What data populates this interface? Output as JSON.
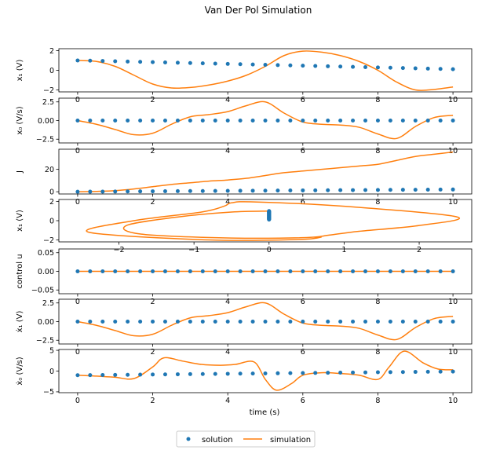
{
  "figure": {
    "title": "Van Der Pol Simulation",
    "xlabel": "time (s)"
  },
  "legend": {
    "placement": "bottom-center",
    "entries": [
      {
        "label": "solution",
        "marker": "circle",
        "color": "#1f77b4"
      },
      {
        "label": "simulation",
        "marker": "line",
        "color": "#ff7f0e"
      }
    ]
  },
  "colors": {
    "solution": "#1f77b4",
    "simulation": "#ff7f0e"
  },
  "chart_data": [
    {
      "type": "scatter+line",
      "ylabel": "x₁ (V)",
      "xlim": [
        -0.5,
        10.5
      ],
      "ylim": [
        -2.2,
        2.2
      ],
      "xticks": [
        0,
        2,
        4,
        6,
        8,
        10
      ],
      "yticks": [
        -2,
        0,
        2
      ],
      "solution": {
        "x": [
          0,
          0.333,
          0.667,
          1,
          1.333,
          1.667,
          2,
          2.333,
          2.667,
          3,
          3.333,
          3.667,
          4,
          4.333,
          4.667,
          5,
          5.333,
          5.667,
          6,
          6.333,
          6.667,
          7,
          7.333,
          7.667,
          8,
          8.333,
          8.667,
          9,
          9.333,
          9.667,
          10
        ],
        "y": [
          1.0,
          0.98,
          0.95,
          0.92,
          0.89,
          0.86,
          0.83,
          0.8,
          0.77,
          0.74,
          0.71,
          0.68,
          0.65,
          0.62,
          0.59,
          0.56,
          0.53,
          0.5,
          0.47,
          0.44,
          0.41,
          0.38,
          0.35,
          0.32,
          0.29,
          0.26,
          0.23,
          0.2,
          0.17,
          0.14,
          0.11
        ]
      },
      "simulation": {
        "x": [
          0,
          0.5,
          1,
          1.5,
          2,
          2.5,
          3,
          3.5,
          4,
          4.5,
          5,
          5.5,
          6,
          6.5,
          7,
          7.5,
          8,
          8.5,
          9,
          9.5,
          10
        ],
        "y": [
          1.0,
          0.9,
          0.4,
          -0.5,
          -1.4,
          -1.8,
          -1.75,
          -1.5,
          -1.1,
          -0.5,
          0.4,
          1.5,
          1.95,
          1.85,
          1.5,
          0.9,
          0.0,
          -1.2,
          -2.0,
          -1.95,
          -1.7
        ]
      }
    },
    {
      "type": "scatter+line",
      "ylabel": "x₀ (V/s)",
      "xlim": [
        -0.5,
        10.5
      ],
      "ylim": [
        -3.0,
        3.0
      ],
      "xticks": [
        0,
        2,
        4,
        6,
        8,
        10
      ],
      "yticks": [
        -2.5,
        0.0,
        2.5
      ],
      "solution": {
        "x": [
          0,
          0.333,
          0.667,
          1,
          1.333,
          1.667,
          2,
          2.333,
          2.667,
          3,
          3.333,
          3.667,
          4,
          4.333,
          4.667,
          5,
          5.333,
          5.667,
          6,
          6.333,
          6.667,
          7,
          7.333,
          7.667,
          8,
          8.333,
          8.667,
          9,
          9.333,
          9.667,
          10
        ],
        "y": [
          0,
          0,
          0,
          0,
          0,
          0,
          0,
          0,
          0,
          0,
          0,
          0,
          0,
          0,
          0,
          0,
          0,
          0,
          0,
          0,
          0,
          0,
          0,
          0,
          0,
          0,
          0,
          0,
          0,
          0,
          0
        ]
      },
      "simulation": {
        "x": [
          0,
          0.5,
          1,
          1.5,
          2,
          2.5,
          3,
          3.5,
          4,
          4.5,
          5,
          5.5,
          6,
          6.5,
          7,
          7.5,
          8,
          8.5,
          9,
          9.5,
          10
        ],
        "y": [
          0,
          -0.5,
          -1.2,
          -1.9,
          -1.7,
          -0.5,
          0.5,
          0.8,
          1.2,
          2.0,
          2.5,
          1.0,
          -0.2,
          -0.5,
          -0.6,
          -0.9,
          -1.8,
          -2.4,
          -0.8,
          0.4,
          0.7
        ]
      }
    },
    {
      "type": "scatter+line",
      "ylabel": "J",
      "xlim": [
        -0.5,
        10.5
      ],
      "ylim": [
        -2,
        38
      ],
      "xticks": [
        0,
        2,
        4,
        6,
        8,
        10
      ],
      "yticks": [
        0,
        20
      ],
      "solution": {
        "x": [
          0,
          0.333,
          0.667,
          1,
          1.333,
          1.667,
          2,
          2.333,
          2.667,
          3,
          3.333,
          3.667,
          4,
          4.333,
          4.667,
          5,
          5.333,
          5.667,
          6,
          6.333,
          6.667,
          7,
          7.333,
          7.667,
          8,
          8.333,
          8.667,
          9,
          9.333,
          9.667,
          10
        ],
        "y": [
          0,
          0.06,
          0.13,
          0.2,
          0.26,
          0.33,
          0.4,
          0.46,
          0.53,
          0.6,
          0.66,
          0.73,
          0.8,
          0.86,
          0.93,
          1.0,
          1.06,
          1.13,
          1.2,
          1.26,
          1.33,
          1.4,
          1.46,
          1.53,
          1.6,
          1.66,
          1.73,
          1.8,
          1.86,
          1.93,
          2.0
        ]
      },
      "simulation": {
        "x": [
          0,
          0.5,
          1,
          1.5,
          2,
          2.5,
          3,
          3.5,
          4,
          4.5,
          5,
          5.5,
          6,
          6.5,
          7,
          7.5,
          8,
          8.5,
          9,
          9.5,
          10
        ],
        "y": [
          0,
          0.3,
          1.0,
          2.5,
          4.5,
          6.5,
          8.0,
          9.5,
          10.5,
          12.0,
          14.5,
          17.0,
          18.5,
          20.0,
          21.5,
          23.0,
          24.5,
          28.0,
          31.5,
          33.5,
          35.5
        ]
      }
    },
    {
      "type": "scatter+line",
      "ylabel": "x₁ (V)",
      "xlim": [
        -2.8,
        2.7
      ],
      "ylim": [
        -2.2,
        2.2
      ],
      "xticks": [
        -2,
        -1,
        0,
        1,
        2
      ],
      "yticks": [
        -2,
        0,
        2
      ],
      "solution": {
        "x": [
          0,
          0,
          0,
          0,
          0,
          0,
          0,
          0,
          0,
          0,
          0,
          0,
          0,
          0,
          0,
          0,
          0,
          0,
          0,
          0,
          0,
          0,
          0,
          0,
          0,
          0,
          0,
          0,
          0,
          0,
          0
        ],
        "y": [
          1.0,
          0.98,
          0.95,
          0.92,
          0.89,
          0.86,
          0.83,
          0.8,
          0.77,
          0.74,
          0.71,
          0.68,
          0.65,
          0.62,
          0.59,
          0.56,
          0.53,
          0.5,
          0.47,
          0.44,
          0.41,
          0.38,
          0.35,
          0.32,
          0.29,
          0.26,
          0.23,
          0.2,
          0.17,
          0.14,
          0.11
        ]
      },
      "simulation": {
        "x": [
          0,
          -0.5,
          -1.2,
          -1.9,
          -1.7,
          -0.5,
          0.5,
          0.8,
          1.2,
          2.0,
          2.5,
          1.0,
          -0.2,
          -0.5,
          -0.6,
          -0.9,
          -1.8,
          -2.4,
          -0.8,
          0.4,
          0.7
        ],
        "y": [
          1.0,
          0.9,
          0.4,
          -0.5,
          -1.4,
          -1.8,
          -1.75,
          -1.5,
          -1.1,
          -0.5,
          0.4,
          1.5,
          1.95,
          1.85,
          1.5,
          0.9,
          0.0,
          -1.2,
          -2.0,
          -1.95,
          -1.7
        ]
      }
    },
    {
      "type": "scatter+line",
      "ylabel": "control u",
      "xlim": [
        -0.5,
        10.5
      ],
      "ylim": [
        -0.06,
        0.06
      ],
      "xticks": [
        0,
        2,
        4,
        6,
        8,
        10
      ],
      "yticks": [
        -0.05,
        0.0,
        0.05
      ],
      "ytick_labels": [
        "−0.05",
        "0.00",
        "0.05"
      ],
      "solution": {
        "x": [
          0,
          0.333,
          0.667,
          1,
          1.333,
          1.667,
          2,
          2.333,
          2.667,
          3,
          3.333,
          3.667,
          4,
          4.333,
          4.667,
          5,
          5.333,
          5.667,
          6,
          6.333,
          6.667,
          7,
          7.333,
          7.667,
          8,
          8.333,
          8.667,
          9,
          9.333,
          9.667,
          10
        ],
        "y": [
          0,
          0,
          0,
          0,
          0,
          0,
          0,
          0,
          0,
          0,
          0,
          0,
          0,
          0,
          0,
          0,
          0,
          0,
          0,
          0,
          0,
          0,
          0,
          0,
          0,
          0,
          0,
          0,
          0,
          0,
          0
        ]
      },
      "simulation": {
        "x": [
          0,
          10
        ],
        "y": [
          0,
          0
        ]
      }
    },
    {
      "type": "scatter+line",
      "ylabel": "ẋ₁ (V)",
      "xlim": [
        -0.5,
        10.5
      ],
      "ylim": [
        -3.0,
        3.0
      ],
      "xticks": [
        0,
        2,
        4,
        6,
        8,
        10
      ],
      "yticks": [
        -2.5,
        0.0,
        2.5
      ],
      "solution": {
        "x": [
          0,
          0.333,
          0.667,
          1,
          1.333,
          1.667,
          2,
          2.333,
          2.667,
          3,
          3.333,
          3.667,
          4,
          4.333,
          4.667,
          5,
          5.333,
          5.667,
          6,
          6.333,
          6.667,
          7,
          7.333,
          7.667,
          8,
          8.333,
          8.667,
          9,
          9.333,
          9.667,
          10
        ],
        "y": [
          0,
          0,
          0,
          0,
          0,
          0,
          0,
          0,
          0,
          0,
          0,
          0,
          0,
          0,
          0,
          0,
          0,
          0,
          0,
          0,
          0,
          0,
          0,
          0,
          0,
          0,
          0,
          0,
          0,
          0,
          0
        ]
      },
      "simulation": {
        "x": [
          0,
          0.5,
          1,
          1.5,
          2,
          2.5,
          3,
          3.5,
          4,
          4.5,
          5,
          5.5,
          6,
          6.5,
          7,
          7.5,
          8,
          8.5,
          9,
          9.5,
          10
        ],
        "y": [
          0,
          -0.5,
          -1.2,
          -1.9,
          -1.7,
          -0.5,
          0.5,
          0.8,
          1.2,
          2.0,
          2.5,
          1.0,
          -0.2,
          -0.5,
          -0.6,
          -0.9,
          -1.8,
          -2.4,
          -0.8,
          0.4,
          0.7
        ]
      }
    },
    {
      "type": "scatter+line",
      "ylabel": "ẋ₀ (V/s)",
      "xlim": [
        -0.5,
        10.5
      ],
      "ylim": [
        -5.2,
        5.2
      ],
      "xticks": [
        0,
        2,
        4,
        6,
        8,
        10
      ],
      "yticks": [
        -5,
        0,
        5
      ],
      "ytick_labels": [
        "−5",
        "0",
        "5"
      ],
      "show_xtick_labels": true,
      "solution": {
        "x": [
          0,
          0.333,
          0.667,
          1,
          1.333,
          1.667,
          2,
          2.333,
          2.667,
          3,
          3.333,
          3.667,
          4,
          4.333,
          4.667,
          5,
          5.333,
          5.667,
          6,
          6.333,
          6.667,
          7,
          7.333,
          7.667,
          8,
          8.333,
          8.667,
          9,
          9.333,
          9.667,
          10
        ],
        "y": [
          -1.0,
          -0.98,
          -0.95,
          -0.92,
          -0.89,
          -0.86,
          -0.83,
          -0.8,
          -0.77,
          -0.74,
          -0.71,
          -0.68,
          -0.65,
          -0.62,
          -0.59,
          -0.56,
          -0.53,
          -0.5,
          -0.47,
          -0.44,
          -0.41,
          -0.38,
          -0.35,
          -0.32,
          -0.29,
          -0.26,
          -0.23,
          -0.2,
          -0.17,
          -0.14,
          -0.11
        ]
      },
      "simulation": {
        "x": [
          0,
          0.5,
          1,
          1.5,
          2,
          2.3,
          2.8,
          3.3,
          3.8,
          4.2,
          4.7,
          5.0,
          5.3,
          5.7,
          6.0,
          6.5,
          7.0,
          7.5,
          8.0,
          8.3,
          8.7,
          9.2,
          9.6,
          10
        ],
        "y": [
          -1.0,
          -1.2,
          -1.5,
          -1.8,
          1.0,
          3.2,
          2.4,
          1.6,
          1.4,
          1.6,
          2.2,
          -2.0,
          -4.6,
          -3.0,
          -1.0,
          -0.4,
          -0.6,
          -1.0,
          -2.0,
          1.0,
          4.8,
          2.0,
          0.5,
          0.3
        ]
      }
    }
  ]
}
